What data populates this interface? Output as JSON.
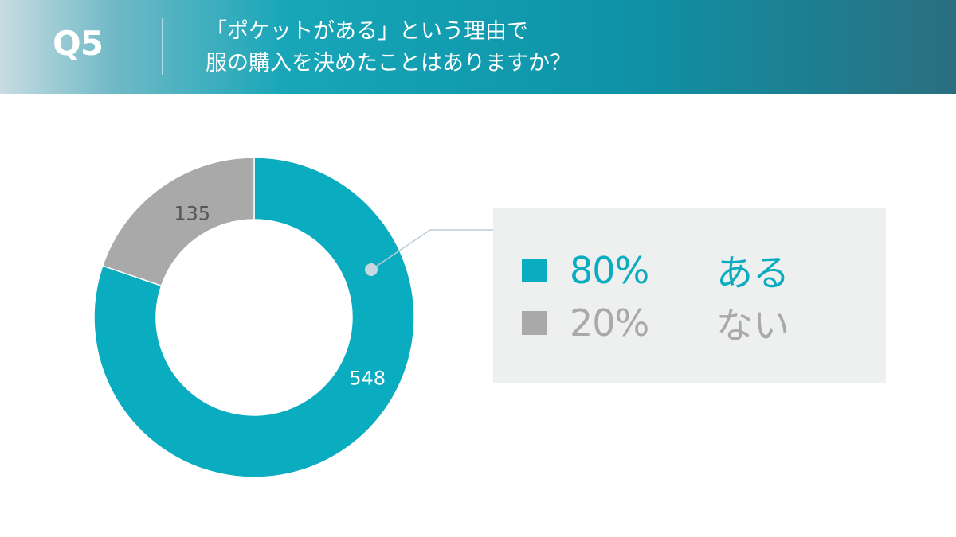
{
  "header": {
    "question_number": "Q5",
    "question_line1": "「ポケットがある」という理由で",
    "question_line2": "服の購入を決めたことはありますか？"
  },
  "colors": {
    "accent": "#0aacbf",
    "secondary": "#a9a9a9",
    "legend_bg": "#eef0f0"
  },
  "chart_data": {
    "type": "donut",
    "categories": [
      "ある",
      "ない"
    ],
    "values": [
      548,
      135
    ],
    "percentages": [
      "80%",
      "20%"
    ],
    "colors": [
      "#0aacbf",
      "#a9a9a9"
    ]
  },
  "legend": {
    "items": [
      {
        "percent": "80%",
        "label": "ある",
        "color": "#0aacbf"
      },
      {
        "percent": "20%",
        "label": "ない",
        "color": "#a9a9a9"
      }
    ]
  }
}
